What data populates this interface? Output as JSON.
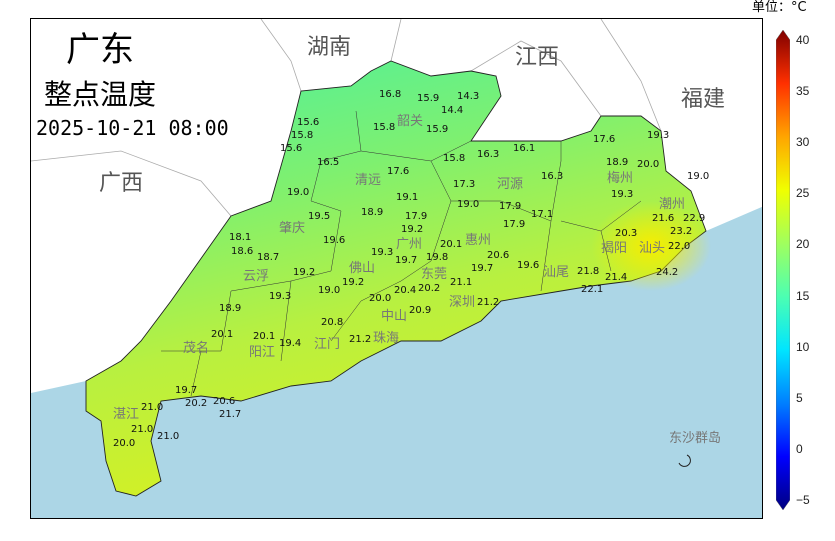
{
  "title": {
    "region": "广东",
    "product": "整点温度",
    "datetime": "2025-10-21 08:00"
  },
  "colorbar": {
    "unit_label": "单位：°C",
    "min": -5,
    "max": 40,
    "ticks": [
      "40",
      "35",
      "30",
      "25",
      "20",
      "15",
      "10",
      "5",
      "0",
      "−5"
    ],
    "colors": [
      "#00007f",
      "#0000ff",
      "#007fff",
      "#00e5ff",
      "#4cffb2",
      "#a0ff5e",
      "#f0ff00",
      "#ffa500",
      "#ff3000",
      "#7f0000"
    ]
  },
  "colors": {
    "sea": "#acd6e6",
    "outside_land": "#ffffff",
    "border": "#000000"
  },
  "provinces": [
    "湖南",
    "江西",
    "福建",
    "广西"
  ],
  "cities": [
    "韶关",
    "清远",
    "河源",
    "梅州",
    "潮州",
    "肇庆",
    "广州",
    "惠州",
    "云浮",
    "佛山",
    "东莞",
    "揭阳",
    "汕头",
    "汕尾",
    "深圳",
    "中山",
    "珠海",
    "江门",
    "茂名",
    "阳江",
    "湛江",
    "东沙群岛"
  ],
  "values": [
    "16.8",
    "15.9",
    "14.3",
    "14.4",
    "15.6",
    "15.8",
    "15.6",
    "15.8",
    "15.9",
    "16.5",
    "17.6",
    "15.8",
    "16.3",
    "16.1",
    "17.3",
    "16.3",
    "19.0",
    "19.1",
    "18.9",
    "19.0",
    "17.9",
    "17.9",
    "17.1",
    "19.5",
    "19.2",
    "17.9",
    "18.1",
    "18.6",
    "18.7",
    "19.6",
    "19.3",
    "19.7",
    "19.8",
    "20.1",
    "20.6",
    "19.7",
    "19.6",
    "19.2",
    "19.2",
    "19.3",
    "19.0",
    "20.2",
    "21.1",
    "20.4",
    "20.0",
    "21.2",
    "20.9",
    "20.1",
    "20.8",
    "21.2",
    "17.6",
    "19.3",
    "20.0",
    "19.0",
    "18.9",
    "19.3",
    "21.6",
    "22.9",
    "23.2",
    "22.0",
    "20.3",
    "21.8",
    "21.4",
    "24.2",
    "22.1",
    "18.9",
    "19.4",
    "20.1",
    "19.7",
    "20.2",
    "20.6",
    "21.0",
    "21.7",
    "21.0",
    "21.0",
    "20.0"
  ]
}
